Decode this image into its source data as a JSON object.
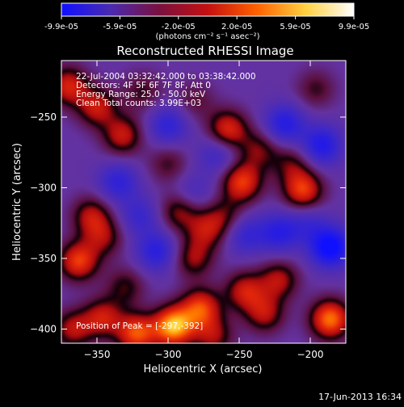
{
  "colorbar": {
    "tick_labels": [
      "-9.9e-05",
      "-5.9e-05",
      "-2.0e-05",
      "2.0e-05",
      "5.9e-05",
      "9.9e-05"
    ],
    "units_label": "(photons cm⁻² s⁻¹ asec⁻²)",
    "colors": [
      "#1010ff",
      "#4a2ab0",
      "#7a1040",
      "#c41010",
      "#ff6000",
      "#ffd040",
      "#ffffff"
    ]
  },
  "chart_data": {
    "type": "heatmap",
    "title": "Reconstructed RHESSI Image",
    "xlabel": "Heliocentric X (arcsec)",
    "ylabel": "Heliocentric Y (arcsec)",
    "xlim": [
      -375,
      -175
    ],
    "ylim": [
      -410,
      -210
    ],
    "xticks": [
      -350,
      -300,
      -250,
      -200
    ],
    "yticks": [
      -400,
      -350,
      -300,
      -250
    ],
    "xtick_labels": [
      "−350",
      "−300",
      "−250",
      "−200"
    ],
    "ytick_labels": [
      "−400",
      "−350",
      "−300",
      "−250"
    ],
    "colormap": "rhessi-diverging",
    "grid": false,
    "intensity_range": [
      -9.9e-05,
      9.9e-05
    ],
    "peak_position": [
      -297,
      -392
    ],
    "annotations": {
      "time": "22-Jul-2004 03:32:42.000 to 03:38:42.000",
      "detectors": "Detectors: 4F 5F 6F 7F 8F, Att 0",
      "energy": "Energy Range: 25.0 - 50.0 keV",
      "clean": "Clean     Total counts: 3.99E+03",
      "peak": "Position of Peak = [-297,-392]"
    },
    "hotspots": [
      {
        "x": -296,
        "y": -398,
        "v": 1.0
      },
      {
        "x": -277,
        "y": -385,
        "v": 0.7
      },
      {
        "x": -322,
        "y": -403,
        "v": 0.75
      },
      {
        "x": -346,
        "y": -392,
        "v": 0.55
      },
      {
        "x": -367,
        "y": -400,
        "v": 0.5
      },
      {
        "x": -232,
        "y": -389,
        "v": 0.5
      },
      {
        "x": -186,
        "y": -393,
        "v": 0.85
      },
      {
        "x": -268,
        "y": -405,
        "v": 0.45
      },
      {
        "x": -246,
        "y": -373,
        "v": 0.55
      },
      {
        "x": -222,
        "y": -365,
        "v": 0.5
      },
      {
        "x": -363,
        "y": -352,
        "v": 0.7
      },
      {
        "x": -330,
        "y": -370,
        "v": 0.35
      },
      {
        "x": -282,
        "y": -350,
        "v": 0.45
      },
      {
        "x": -273,
        "y": -330,
        "v": 0.45
      },
      {
        "x": -354,
        "y": -320,
        "v": 0.5
      },
      {
        "x": -345,
        "y": -335,
        "v": 0.4
      },
      {
        "x": -292,
        "y": -317,
        "v": 0.45
      },
      {
        "x": -260,
        "y": -320,
        "v": 0.35
      },
      {
        "x": -248,
        "y": -296,
        "v": 0.7
      },
      {
        "x": -205,
        "y": -302,
        "v": 0.7
      },
      {
        "x": -213,
        "y": -283,
        "v": 0.35
      },
      {
        "x": -258,
        "y": -259,
        "v": 0.65
      },
      {
        "x": -236,
        "y": -273,
        "v": 0.4
      },
      {
        "x": -332,
        "y": -263,
        "v": 0.55
      },
      {
        "x": -350,
        "y": -243,
        "v": 0.55
      },
      {
        "x": -370,
        "y": -228,
        "v": 0.6
      },
      {
        "x": -318,
        "y": -232,
        "v": 0.3
      },
      {
        "x": -281,
        "y": -238,
        "v": 0.25
      },
      {
        "x": -196,
        "y": -230,
        "v": 0.3
      },
      {
        "x": -300,
        "y": -283,
        "v": 0.3
      }
    ],
    "coldspots": [
      {
        "x": -186,
        "y": -342,
        "v": -0.85
      },
      {
        "x": -192,
        "y": -270,
        "v": -0.6
      },
      {
        "x": -218,
        "y": -255,
        "v": -0.55
      },
      {
        "x": -308,
        "y": -345,
        "v": -0.5
      },
      {
        "x": -222,
        "y": -332,
        "v": -0.5
      },
      {
        "x": -246,
        "y": -333,
        "v": -0.4
      },
      {
        "x": -300,
        "y": -256,
        "v": -0.45
      },
      {
        "x": -335,
        "y": -296,
        "v": -0.45
      },
      {
        "x": -265,
        "y": -276,
        "v": -0.35
      },
      {
        "x": -320,
        "y": -320,
        "v": -0.35
      },
      {
        "x": -202,
        "y": -325,
        "v": -0.3
      },
      {
        "x": -282,
        "y": -303,
        "v": -0.25
      }
    ]
  },
  "footer": {
    "timestamp": "17-Jun-2013 16:34"
  }
}
